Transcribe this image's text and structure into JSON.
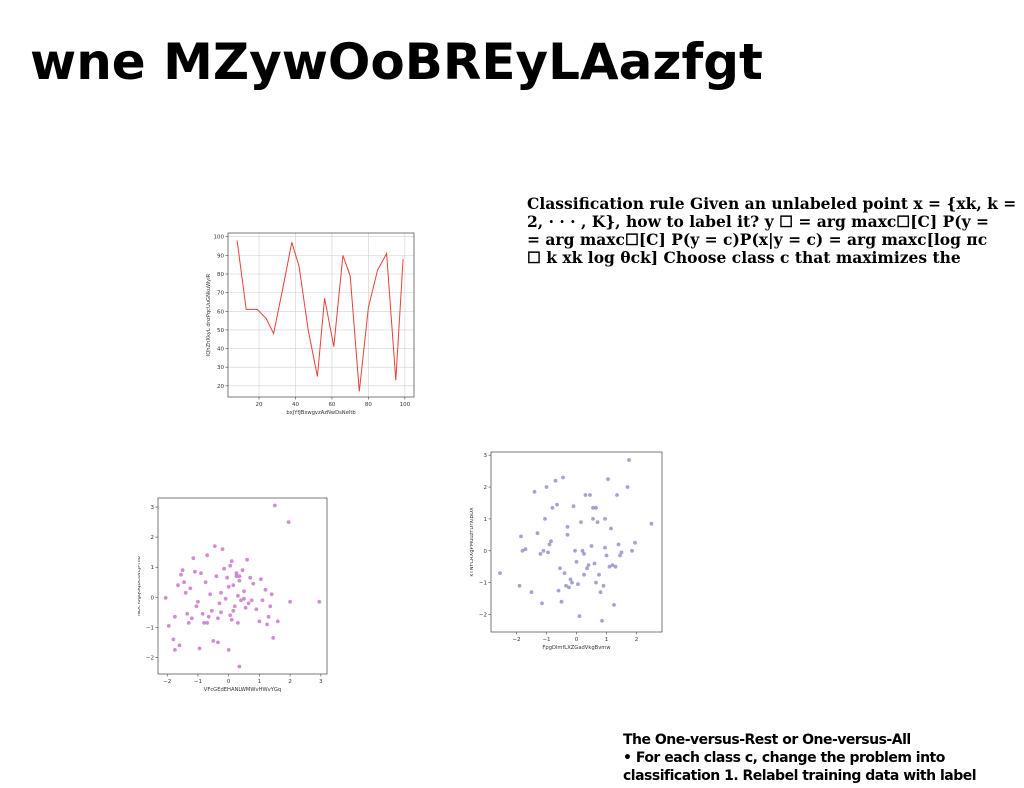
{
  "slide": {
    "title": "wne MZywOoBREyLAazfgt",
    "rule_lines": [
      "Classification rule Given an unlabeled point x = {xk, k =",
      "2, · · · , K}, how to label it? y ☐ = arg maxc☐[C] P(y =",
      "= arg maxc☐[C] P(y = c)P(x|y = c) = arg maxc[log πc",
      "☐ k xk log θck] Choose class c that maximizes the"
    ],
    "ovr_lines": [
      "The One-versus-Rest or One-versus-All",
      "• For each class c, change the problem into",
      "classification 1. Relabel training data with label"
    ]
  },
  "chart_data": [
    {
      "type": "line",
      "xlabel": "bxJYfJBxwgvzAzNwDsNeltb",
      "ylabel": "lQhZhXkyL dnzPqcUuGNkuWyiR",
      "xlim": [
        3,
        105
      ],
      "ylim": [
        14,
        102
      ],
      "xticks": [
        20,
        40,
        60,
        80,
        100
      ],
      "yticks": [
        20,
        30,
        40,
        50,
        60,
        70,
        80,
        90,
        100
      ],
      "grid": true,
      "color": "#e8413a",
      "series": [
        {
          "x": [
            8,
            13,
            19,
            24,
            28,
            33,
            38,
            42,
            47,
            52,
            56,
            61,
            66,
            70,
            75,
            80,
            85,
            90,
            95,
            99
          ],
          "y": [
            98,
            61,
            61,
            56,
            48,
            72,
            97,
            84,
            50,
            25,
            67,
            41,
            90,
            79,
            17,
            62,
            82,
            91,
            23,
            88
          ]
        }
      ]
    },
    {
      "type": "scatter",
      "xlabel": "VFcGEdEHANLWMWvHWvYGq",
      "ylabel": "NDcYogqGqBCdvLjPHio",
      "xlim": [
        -2.3,
        3.2
      ],
      "ylim": [
        -2.55,
        3.3
      ],
      "xticks": [
        -2,
        -1,
        0,
        1,
        2,
        3
      ],
      "yticks": [
        -2,
        -1,
        0,
        1,
        2,
        3
      ],
      "grid": false,
      "color": "#c267c2",
      "series": [
        {
          "points": [
            [
              -2.05,
              -0.02
            ],
            [
              -1.95,
              -0.95
            ],
            [
              -1.8,
              -1.4
            ],
            [
              -1.75,
              -1.75
            ],
            [
              -1.65,
              0.4
            ],
            [
              -1.6,
              -1.6
            ],
            [
              -1.55,
              0.75
            ],
            [
              -1.5,
              0.9
            ],
            [
              -1.45,
              0.5
            ],
            [
              -1.4,
              0.15
            ],
            [
              -1.35,
              -0.55
            ],
            [
              -1.3,
              -0.85
            ],
            [
              -1.25,
              0.3
            ],
            [
              -1.2,
              -0.7
            ],
            [
              -1.15,
              1.3
            ],
            [
              -1.1,
              0.85
            ],
            [
              -1.05,
              -0.3
            ],
            [
              -1.0,
              -0.15
            ],
            [
              -0.95,
              -1.7
            ],
            [
              -0.9,
              0.8
            ],
            [
              -0.85,
              -0.55
            ],
            [
              -0.8,
              -0.85
            ],
            [
              -0.75,
              0.5
            ],
            [
              -0.7,
              1.4
            ],
            [
              -0.65,
              -0.65
            ],
            [
              -0.6,
              0.1
            ],
            [
              -0.55,
              -0.45
            ],
            [
              -0.5,
              -1.45
            ],
            [
              -0.45,
              1.7
            ],
            [
              -0.4,
              0.7
            ],
            [
              -0.35,
              -0.7
            ],
            [
              -0.3,
              -0.2
            ],
            [
              -0.25,
              0.15
            ],
            [
              -0.2,
              1.6
            ],
            [
              -0.15,
              0.95
            ],
            [
              -0.1,
              -0.05
            ],
            [
              -0.05,
              0.65
            ],
            [
              0.0,
              0.35
            ],
            [
              0.05,
              -0.6
            ],
            [
              0.1,
              1.2
            ],
            [
              0.15,
              0.4
            ],
            [
              0.2,
              -0.3
            ],
            [
              0.25,
              0.8
            ],
            [
              0.3,
              -0.85
            ],
            [
              0.35,
              0.55
            ],
            [
              0.4,
              -0.1
            ],
            [
              0.45,
              0.9
            ],
            [
              0.5,
              0.2
            ],
            [
              0.55,
              -0.35
            ],
            [
              0.6,
              1.25
            ],
            [
              0.65,
              -0.2
            ],
            [
              0.7,
              0.65
            ],
            [
              0.75,
              -0.1
            ],
            [
              0.8,
              0.45
            ],
            [
              0.9,
              -0.4
            ],
            [
              1.0,
              -0.8
            ],
            [
              1.05,
              0.6
            ],
            [
              1.1,
              -0.1
            ],
            [
              1.2,
              0.25
            ],
            [
              1.25,
              -0.9
            ],
            [
              1.3,
              -0.65
            ],
            [
              1.35,
              -0.3
            ],
            [
              1.4,
              0.1
            ],
            [
              1.45,
              -1.35
            ],
            [
              1.5,
              3.05
            ],
            [
              1.6,
              -0.8
            ],
            [
              1.95,
              2.5
            ],
            [
              2.0,
              -0.15
            ],
            [
              2.95,
              -0.15
            ],
            [
              0.35,
              -2.3
            ],
            [
              -0.35,
              -1.5
            ],
            [
              0.0,
              -1.75
            ],
            [
              -0.7,
              -0.85
            ],
            [
              0.25,
              0.7
            ],
            [
              0.35,
              0.7
            ],
            [
              -1.75,
              -0.65
            ],
            [
              0.05,
              1.05
            ],
            [
              0.1,
              -0.75
            ],
            [
              0.5,
              -0.05
            ],
            [
              -0.25,
              -0.5
            ],
            [
              0.15,
              -0.45
            ],
            [
              0.3,
              0.05
            ]
          ]
        }
      ]
    },
    {
      "type": "scatter",
      "xlabel": "FpgDlmfLXZGadVkgBvmw",
      "ylabel": "kTNFCRXgPMuuzFDrXlBDX",
      "xlim": [
        -2.85,
        2.85
      ],
      "ylim": [
        -2.55,
        3.1
      ],
      "xticks": [
        -2,
        -1,
        0,
        1,
        2
      ],
      "yticks": [
        -2,
        -1,
        0,
        1,
        2,
        3
      ],
      "grid": false,
      "color": "#8686c0",
      "series": [
        {
          "points": [
            [
              -2.55,
              -0.7
            ],
            [
              -1.9,
              -1.1
            ],
            [
              -1.85,
              0.45
            ],
            [
              -1.8,
              0.0
            ],
            [
              -1.7,
              0.05
            ],
            [
              -1.5,
              -1.3
            ],
            [
              -1.4,
              1.85
            ],
            [
              -1.3,
              0.55
            ],
            [
              -1.2,
              -0.1
            ],
            [
              -1.15,
              -1.65
            ],
            [
              -1.1,
              0.0
            ],
            [
              -1.05,
              1.0
            ],
            [
              -1.0,
              2.0
            ],
            [
              -0.95,
              -0.05
            ],
            [
              -0.9,
              0.2
            ],
            [
              -0.85,
              0.3
            ],
            [
              -0.8,
              1.35
            ],
            [
              -0.7,
              2.2
            ],
            [
              -0.65,
              1.45
            ],
            [
              -0.6,
              -1.25
            ],
            [
              -0.55,
              -0.55
            ],
            [
              -0.5,
              -1.6
            ],
            [
              -0.45,
              2.3
            ],
            [
              -0.4,
              -0.7
            ],
            [
              -0.35,
              -1.1
            ],
            [
              -0.3,
              0.75
            ],
            [
              -0.25,
              -1.15
            ],
            [
              -0.2,
              -0.9
            ],
            [
              -0.15,
              -1.0
            ],
            [
              -0.1,
              1.4
            ],
            [
              -0.05,
              0.0
            ],
            [
              0.0,
              -0.35
            ],
            [
              0.05,
              -1.05
            ],
            [
              0.1,
              -2.05
            ],
            [
              0.15,
              0.9
            ],
            [
              0.2,
              0.0
            ],
            [
              0.25,
              -0.1
            ],
            [
              0.3,
              1.75
            ],
            [
              0.35,
              -0.55
            ],
            [
              0.4,
              -0.45
            ],
            [
              0.45,
              1.75
            ],
            [
              0.5,
              0.15
            ],
            [
              0.55,
              1.0
            ],
            [
              0.6,
              -0.4
            ],
            [
              0.65,
              1.35
            ],
            [
              0.7,
              0.9
            ],
            [
              0.75,
              -0.75
            ],
            [
              0.8,
              -1.3
            ],
            [
              0.85,
              -2.2
            ],
            [
              0.9,
              -1.1
            ],
            [
              0.95,
              0.1
            ],
            [
              1.0,
              -0.15
            ],
            [
              1.05,
              2.25
            ],
            [
              1.1,
              -0.5
            ],
            [
              1.15,
              0.7
            ],
            [
              1.2,
              -0.45
            ],
            [
              1.25,
              -1.7
            ],
            [
              1.3,
              -0.5
            ],
            [
              1.35,
              1.75
            ],
            [
              1.4,
              0.2
            ],
            [
              1.45,
              -0.15
            ],
            [
              1.5,
              -0.05
            ],
            [
              1.7,
              2.0
            ],
            [
              1.75,
              2.85
            ],
            [
              1.85,
              0.0
            ],
            [
              1.95,
              0.25
            ],
            [
              2.5,
              0.85
            ],
            [
              0.65,
              -1.0
            ],
            [
              0.55,
              1.35
            ],
            [
              -0.3,
              0.5
            ],
            [
              0.25,
              -0.75
            ],
            [
              0.95,
              1.0
            ]
          ]
        }
      ]
    }
  ]
}
